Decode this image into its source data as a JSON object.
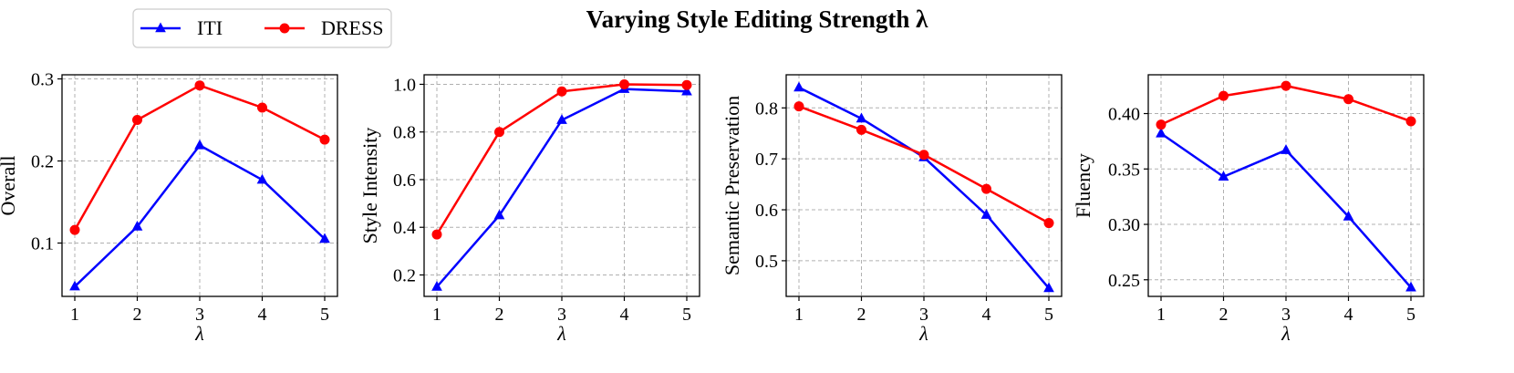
{
  "figure": {
    "title": "Varying Style Editing Strength λ",
    "legend": {
      "placement": "top-left",
      "entries": [
        {
          "label": "ITI",
          "color": "#0000ff",
          "marker": "triangle"
        },
        {
          "label": "DRESS",
          "color": "#ff0000",
          "marker": "circle"
        }
      ]
    }
  },
  "chart_data": [
    {
      "type": "line",
      "xlabel": "λ",
      "ylabel": "Overall",
      "x": [
        1,
        2,
        3,
        4,
        5
      ],
      "xticks": [
        "1",
        "2",
        "3",
        "4",
        "5"
      ],
      "ylim": [
        0.035,
        0.305
      ],
      "yticks": [
        0.1,
        0.2,
        0.3
      ],
      "ytick_labels": [
        "0.1",
        "0.2",
        "0.3"
      ],
      "grid": true,
      "series": [
        {
          "name": "ITI",
          "color": "#0000ff",
          "marker": "triangle",
          "values": [
            0.047,
            0.12,
            0.219,
            0.177,
            0.105
          ]
        },
        {
          "name": "DRESS",
          "color": "#ff0000",
          "marker": "circle",
          "values": [
            0.116,
            0.25,
            0.292,
            0.265,
            0.226
          ]
        }
      ]
    },
    {
      "type": "line",
      "xlabel": "λ",
      "ylabel": "Style Intensity",
      "x": [
        1,
        2,
        3,
        4,
        5
      ],
      "xticks": [
        "1",
        "2",
        "3",
        "4",
        "5"
      ],
      "ylim": [
        0.11,
        1.04
      ],
      "yticks": [
        0.2,
        0.4,
        0.6,
        0.8,
        1.0
      ],
      "ytick_labels": [
        "0.2",
        "0.4",
        "0.6",
        "0.8",
        "1.0"
      ],
      "grid": true,
      "series": [
        {
          "name": "ITI",
          "color": "#0000ff",
          "marker": "triangle",
          "values": [
            0.15,
            0.45,
            0.85,
            0.98,
            0.97
          ]
        },
        {
          "name": "DRESS",
          "color": "#ff0000",
          "marker": "circle",
          "values": [
            0.37,
            0.8,
            0.97,
            1.0,
            0.997
          ]
        }
      ]
    },
    {
      "type": "line",
      "xlabel": "λ",
      "ylabel": "Semantic Preservation",
      "x": [
        1,
        2,
        3,
        4,
        5
      ],
      "xticks": [
        "1",
        "2",
        "3",
        "4",
        "5"
      ],
      "ylim": [
        0.43,
        0.865
      ],
      "yticks": [
        0.5,
        0.6,
        0.7,
        0.8
      ],
      "ytick_labels": [
        "0.5",
        "0.6",
        "0.7",
        "0.8"
      ],
      "grid": true,
      "series": [
        {
          "name": "ITI",
          "color": "#0000ff",
          "marker": "triangle",
          "values": [
            0.84,
            0.779,
            0.703,
            0.59,
            0.446
          ]
        },
        {
          "name": "DRESS",
          "color": "#ff0000",
          "marker": "circle",
          "values": [
            0.803,
            0.757,
            0.708,
            0.641,
            0.574
          ]
        }
      ]
    },
    {
      "type": "line",
      "xlabel": "λ",
      "ylabel": "Fluency",
      "x": [
        1,
        2,
        3,
        4,
        5
      ],
      "xticks": [
        "1",
        "2",
        "3",
        "4",
        "5"
      ],
      "ylim": [
        0.235,
        0.435
      ],
      "yticks": [
        0.25,
        0.3,
        0.35,
        0.4
      ],
      "ytick_labels": [
        "0.25",
        "0.30",
        "0.35",
        "0.40"
      ],
      "grid": true,
      "series": [
        {
          "name": "ITI",
          "color": "#0000ff",
          "marker": "triangle",
          "values": [
            0.382,
            0.343,
            0.367,
            0.307,
            0.243
          ]
        },
        {
          "name": "DRESS",
          "color": "#ff0000",
          "marker": "circle",
          "values": [
            0.39,
            0.416,
            0.425,
            0.413,
            0.393
          ]
        }
      ]
    }
  ]
}
